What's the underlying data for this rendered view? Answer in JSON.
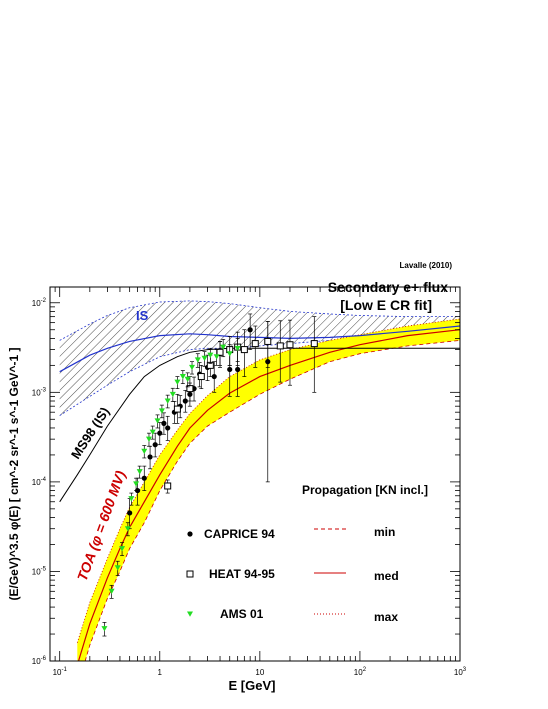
{
  "chart_data": {
    "type": "scatter",
    "title": "Secondary e+ flux",
    "subtitle": "[Low E CR fit]",
    "credit": "Lavalle (2010)",
    "xlabel": "E [GeV]",
    "ylabel": "(E/GeV)^3.5 φ(E)  [ cm^-2 sr^-1 s^-1 GeV^-1 ]",
    "x_scale": "log",
    "y_scale": "log",
    "xlim": [
      0.08,
      1000
    ],
    "ylim": [
      1e-06,
      0.015
    ],
    "x_ticks": [
      0.1,
      1,
      10,
      100,
      1000
    ],
    "x_tick_labels": [
      "10^-1",
      "1",
      "10",
      "10^2",
      "10^3"
    ],
    "y_ticks": [
      1e-06,
      1e-05,
      0.0001,
      0.001,
      0.01
    ],
    "y_tick_labels": [
      "10^-6",
      "10^-5",
      "10^-4",
      "10^-3",
      "10^-2"
    ],
    "grid": false,
    "annotations": {
      "is": "IS",
      "ms98": "MS98 (IS)",
      "toa": "TOA (φ = 600 MV)",
      "propagation": "Propagation [KN incl.]"
    },
    "legend_markers": [
      {
        "name": "CAPRICE 94",
        "marker": "filled-circle",
        "color": "#000000"
      },
      {
        "name": "HEAT 94-95",
        "marker": "open-square",
        "color": "#000000"
      },
      {
        "name": "AMS 01",
        "marker": "filled-triangle-down",
        "color": "#22dd22"
      }
    ],
    "legend_lines": [
      {
        "name": "min",
        "style": "dashed",
        "color": "#cc0000"
      },
      {
        "name": "med",
        "style": "solid",
        "color": "#cc0000"
      },
      {
        "name": "max",
        "style": "dotted",
        "color": "#cc0000"
      }
    ],
    "colors": {
      "is": "#2233cc",
      "toa_band": "#ffff00",
      "toa": "#cc0000",
      "ms98": "#000000"
    },
    "series": [
      {
        "name": "IS",
        "kind": "band",
        "x": [
          0.1,
          0.2,
          0.3,
          0.5,
          1,
          2,
          3,
          5,
          10,
          20,
          50,
          100,
          300,
          1000
        ],
        "lower": [
          0.00055,
          0.0009,
          0.0012,
          0.0017,
          0.0025,
          0.003,
          0.0031,
          0.0031,
          0.0033,
          0.0035,
          0.0038,
          0.004,
          0.0044,
          0.005
        ],
        "upper": [
          0.0038,
          0.0058,
          0.0072,
          0.0088,
          0.0102,
          0.0105,
          0.0103,
          0.0098,
          0.0088,
          0.008,
          0.0075,
          0.0072,
          0.007,
          0.007
        ]
      },
      {
        "name": "IS",
        "kind": "line",
        "x": [
          0.1,
          0.2,
          0.3,
          0.5,
          1,
          2,
          3,
          5,
          10,
          20,
          50,
          100,
          300,
          1000
        ],
        "y": [
          0.0017,
          0.0026,
          0.0031,
          0.0037,
          0.0043,
          0.0045,
          0.0044,
          0.0042,
          0.0041,
          0.004,
          0.0041,
          0.0043,
          0.0048,
          0.0055
        ]
      },
      {
        "name": "MS98 (IS)",
        "kind": "line",
        "x": [
          0.1,
          0.15,
          0.2,
          0.3,
          0.5,
          0.7,
          1,
          1.5,
          2,
          3,
          5,
          10,
          20,
          100,
          1000
        ],
        "y": [
          6e-05,
          0.00012,
          0.0002,
          0.00042,
          0.00095,
          0.0015,
          0.002,
          0.0025,
          0.0028,
          0.003,
          0.0031,
          0.0031,
          0.0031,
          0.0031,
          0.0031
        ]
      },
      {
        "name": "TOA",
        "kind": "band",
        "x": [
          0.15,
          0.2,
          0.3,
          0.4,
          0.5,
          0.7,
          1,
          1.5,
          2,
          3,
          5,
          10,
          20,
          50,
          100,
          300,
          1000
        ],
        "lower": [
          5e-07,
          1.5e-06,
          5e-06,
          1e-05,
          1.8e-05,
          3.5e-05,
          8e-05,
          0.00017,
          0.00027,
          0.00042,
          0.0006,
          0.00095,
          0.0014,
          0.0022,
          0.0027,
          0.0033,
          0.0038
        ],
        "upper": [
          1.6e-06,
          4.5e-06,
          1.4e-05,
          3e-05,
          5.2e-05,
          0.0001,
          0.0002,
          0.00038,
          0.00058,
          0.00092,
          0.0015,
          0.0023,
          0.003,
          0.0038,
          0.0044,
          0.0055,
          0.0066
        ]
      },
      {
        "name": "TOA med",
        "kind": "line",
        "x": [
          0.15,
          0.2,
          0.3,
          0.4,
          0.5,
          0.7,
          1,
          1.5,
          2,
          3,
          5,
          10,
          20,
          50,
          100,
          300,
          1000
        ],
        "y": [
          9e-07,
          2.6e-06,
          8.5e-06,
          1.8e-05,
          3.1e-05,
          6e-05,
          0.00012,
          0.00025,
          0.0004,
          0.00063,
          0.00098,
          0.0015,
          0.002,
          0.0028,
          0.0034,
          0.0043,
          0.005
        ]
      },
      {
        "name": "CAPRICE 94",
        "kind": "points",
        "x": [
          0.5,
          0.6,
          0.7,
          0.8,
          0.9,
          1,
          1.1,
          1.2,
          1.4,
          1.6,
          1.8,
          2,
          2.2,
          2.5,
          3,
          3.5,
          4,
          5,
          6,
          8,
          12
        ],
        "y": [
          4.5e-05,
          8e-05,
          0.00011,
          0.00019,
          0.00026,
          0.00035,
          0.00045,
          0.0004,
          0.0006,
          0.0007,
          0.0008,
          0.00095,
          0.0011,
          0.0016,
          0.0019,
          0.0015,
          0.0027,
          0.0018,
          0.0018,
          0.005,
          0.0022
        ],
        "yerr_low": [
          1.5e-05,
          2.5e-05,
          3e-05,
          5e-05,
          7e-05,
          9e-05,
          0.00011,
          0.00011,
          0.00015,
          0.00018,
          0.0002,
          0.00025,
          0.0003,
          0.00045,
          0.00055,
          0.0005,
          0.0008,
          0.0009,
          0.0009,
          0.002,
          0.0021
        ],
        "yerr_high": [
          2e-05,
          3e-05,
          4e-05,
          6e-05,
          9e-05,
          0.00011,
          0.00014,
          0.00014,
          0.00019,
          0.00022,
          0.00025,
          0.00032,
          0.00038,
          0.00055,
          0.0007,
          0.0007,
          0.001,
          0.0014,
          0.0015,
          0.0025,
          0.004
        ]
      },
      {
        "name": "HEAT 94-95",
        "kind": "points",
        "x": [
          1.2,
          1.5,
          2,
          2.6,
          3.2,
          4,
          5,
          6,
          7,
          9,
          12,
          16,
          20,
          35
        ],
        "y": [
          9e-05,
          0.00065,
          0.0011,
          0.0015,
          0.002,
          0.0028,
          0.003,
          0.0032,
          0.003,
          0.0035,
          0.0037,
          0.0033,
          0.0034,
          0.0035
        ],
        "yerr_low": [
          1.5e-05,
          0.0002,
          0.0003,
          0.0004,
          0.0005,
          0.0008,
          0.001,
          0.0012,
          0.0015,
          0.0016,
          0.0018,
          0.002,
          0.0022,
          0.0025
        ],
        "yerr_high": [
          1.5e-05,
          0.0003,
          0.0004,
          0.0005,
          0.0006,
          0.0009,
          0.0012,
          0.0015,
          0.002,
          0.002,
          0.0025,
          0.003,
          0.003,
          0.0035
        ]
      },
      {
        "name": "AMS 01",
        "kind": "points",
        "x": [
          0.28,
          0.33,
          0.38,
          0.42,
          0.48,
          0.52,
          0.58,
          0.63,
          0.7,
          0.78,
          0.85,
          0.95,
          1.05,
          1.2,
          1.35,
          1.5,
          1.7,
          1.9,
          2.1,
          2.4,
          2.8,
          3.2,
          3.7,
          4.3,
          5,
          6
        ],
        "y": [
          2.3e-06,
          6e-06,
          1.1e-05,
          1.8e-05,
          3e-05,
          6.5e-05,
          9.5e-05,
          0.00013,
          0.00022,
          0.0003,
          0.00036,
          0.00048,
          0.00062,
          0.0008,
          0.00095,
          0.0013,
          0.0015,
          0.0014,
          0.0019,
          0.0023,
          0.0024,
          0.0026,
          0.0025,
          0.0032,
          0.0027,
          0.0031
        ],
        "yerr_low": [
          4e-07,
          1e-06,
          2e-06,
          3e-06,
          5e-06,
          1e-05,
          1.5e-05,
          2e-05,
          3.5e-05,
          5e-05,
          6e-05,
          8e-05,
          0.0001,
          0.00013,
          0.00016,
          0.0002,
          0.00025,
          0.00025,
          0.0003,
          0.0004,
          0.00045,
          0.0005,
          0.0005,
          0.0007,
          0.0007,
          0.0009
        ],
        "yerr_high": [
          4e-07,
          1e-06,
          2e-06,
          3e-06,
          5e-06,
          1e-05,
          1.5e-05,
          2e-05,
          3.5e-05,
          5e-05,
          6e-05,
          8e-05,
          0.0001,
          0.00013,
          0.00016,
          0.0002,
          0.00025,
          0.00025,
          0.0003,
          0.0004,
          0.00045,
          0.0005,
          0.0005,
          0.0007,
          0.0007,
          0.0009
        ]
      }
    ]
  }
}
